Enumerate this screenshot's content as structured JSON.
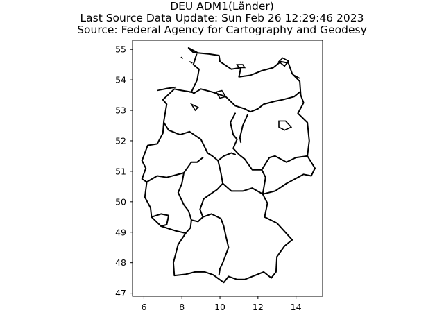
{
  "figure": {
    "title_lines": [
      "DEU ADM1(Länder)",
      "Last Source Data Update: Sun Feb 26 12:29:46 2023",
      "Source: Federal Agency for Cartography and Geodesy"
    ]
  },
  "map": {
    "xlim": [
      5.4,
      15.4
    ],
    "ylim": [
      46.9,
      55.3
    ],
    "x_ticks": [
      6,
      8,
      10,
      12,
      14
    ],
    "y_ticks": [
      47,
      48,
      49,
      50,
      51,
      52,
      53,
      54,
      55
    ],
    "boundary_color": "#000000",
    "outline": [
      [
        8.35,
        55.05
      ],
      [
        8.6,
        54.9
      ],
      [
        9.4,
        54.85
      ],
      [
        9.95,
        54.8
      ],
      [
        10.0,
        54.6
      ],
      [
        10.6,
        54.35
      ],
      [
        11.1,
        54.4
      ],
      [
        11.0,
        54.1
      ],
      [
        11.6,
        54.15
      ],
      [
        12.2,
        54.3
      ],
      [
        12.8,
        54.4
      ],
      [
        13.2,
        54.6
      ],
      [
        13.6,
        54.55
      ],
      [
        13.8,
        54.2
      ],
      [
        14.2,
        53.95
      ],
      [
        14.25,
        53.5
      ],
      [
        14.4,
        53.25
      ],
      [
        14.1,
        52.9
      ],
      [
        14.6,
        52.6
      ],
      [
        14.7,
        52.0
      ],
      [
        14.6,
        51.5
      ],
      [
        15.0,
        51.1
      ],
      [
        14.8,
        50.85
      ],
      [
        14.4,
        50.9
      ],
      [
        13.5,
        50.6
      ],
      [
        12.9,
        50.35
      ],
      [
        12.25,
        50.25
      ],
      [
        12.5,
        49.95
      ],
      [
        12.35,
        49.5
      ],
      [
        13.0,
        49.3
      ],
      [
        13.8,
        48.75
      ],
      [
        13.4,
        48.55
      ],
      [
        13.0,
        48.2
      ],
      [
        12.95,
        47.7
      ],
      [
        12.7,
        47.5
      ],
      [
        12.3,
        47.7
      ],
      [
        11.3,
        47.45
      ],
      [
        10.9,
        47.45
      ],
      [
        10.45,
        47.55
      ],
      [
        10.2,
        47.35
      ],
      [
        9.65,
        47.6
      ],
      [
        9.2,
        47.7
      ],
      [
        8.7,
        47.7
      ],
      [
        8.2,
        47.62
      ],
      [
        7.6,
        47.58
      ],
      [
        7.55,
        48.0
      ],
      [
        7.8,
        48.6
      ],
      [
        8.2,
        48.97
      ],
      [
        7.65,
        49.05
      ],
      [
        6.9,
        49.2
      ],
      [
        6.4,
        49.5
      ],
      [
        6.35,
        49.8
      ],
      [
        6.05,
        50.15
      ],
      [
        6.15,
        50.65
      ],
      [
        5.9,
        50.75
      ],
      [
        6.1,
        51.1
      ],
      [
        5.9,
        51.35
      ],
      [
        6.2,
        51.85
      ],
      [
        6.7,
        51.9
      ],
      [
        7.0,
        52.25
      ],
      [
        7.05,
        52.65
      ],
      [
        7.2,
        53.2
      ],
      [
        7.0,
        53.35
      ],
      [
        7.6,
        53.7
      ],
      [
        8.0,
        53.65
      ],
      [
        8.5,
        53.6
      ],
      [
        8.8,
        54.0
      ],
      [
        8.9,
        54.35
      ],
      [
        8.6,
        54.5
      ],
      [
        8.8,
        54.9
      ],
      [
        8.35,
        55.05
      ]
    ],
    "inner_borders": [
      [
        [
          8.6,
          53.55
        ],
        [
          9.0,
          53.7
        ],
        [
          9.6,
          53.6
        ],
        [
          10.3,
          53.45
        ],
        [
          10.8,
          53.15
        ],
        [
          11.3,
          53.05
        ],
        [
          11.6,
          52.95
        ],
        [
          12.0,
          53.05
        ],
        [
          12.3,
          53.2
        ],
        [
          12.9,
          53.3
        ],
        [
          13.3,
          53.35
        ],
        [
          13.9,
          53.45
        ],
        [
          14.2,
          53.6
        ]
      ],
      [
        [
          7.05,
          52.6
        ],
        [
          7.3,
          52.35
        ],
        [
          7.9,
          52.2
        ],
        [
          8.4,
          52.3
        ],
        [
          9.0,
          52.05
        ],
        [
          9.35,
          51.6
        ],
        [
          9.6,
          51.5
        ],
        [
          9.9,
          51.35
        ],
        [
          10.2,
          51.5
        ],
        [
          10.6,
          51.6
        ],
        [
          10.8,
          51.55
        ]
      ],
      [
        [
          10.8,
          52.9
        ],
        [
          10.55,
          52.6
        ],
        [
          10.7,
          52.2
        ],
        [
          10.9,
          52.05
        ],
        [
          10.7,
          51.75
        ],
        [
          11.0,
          51.55
        ],
        [
          11.3,
          51.4
        ],
        [
          11.7,
          51.05
        ],
        [
          12.2,
          51.05
        ],
        [
          12.6,
          51.45
        ],
        [
          12.9,
          51.5
        ],
        [
          13.5,
          51.3
        ],
        [
          14.0,
          51.45
        ],
        [
          14.6,
          51.5
        ]
      ],
      [
        [
          11.45,
          52.85
        ],
        [
          11.2,
          52.5
        ],
        [
          11.05,
          52.1
        ],
        [
          11.1,
          51.95
        ]
      ],
      [
        [
          6.15,
          50.65
        ],
        [
          6.7,
          50.85
        ],
        [
          7.2,
          50.8
        ],
        [
          8.1,
          50.95
        ],
        [
          8.5,
          51.3
        ],
        [
          8.8,
          51.3
        ],
        [
          9.1,
          51.45
        ]
      ],
      [
        [
          8.1,
          50.95
        ],
        [
          8.0,
          50.6
        ],
        [
          7.8,
          50.3
        ],
        [
          8.1,
          49.9
        ],
        [
          8.35,
          49.7
        ],
        [
          8.5,
          49.4
        ],
        [
          8.45,
          49.15
        ],
        [
          8.2,
          48.97
        ]
      ],
      [
        [
          6.4,
          49.5
        ],
        [
          6.9,
          49.6
        ],
        [
          7.3,
          49.55
        ],
        [
          7.2,
          49.25
        ],
        [
          6.9,
          49.2
        ]
      ],
      [
        [
          9.9,
          51.35
        ],
        [
          10.05,
          50.95
        ],
        [
          10.15,
          50.6
        ],
        [
          9.85,
          50.4
        ],
        [
          9.5,
          50.25
        ],
        [
          9.15,
          50.1
        ],
        [
          8.95,
          49.75
        ],
        [
          9.1,
          49.5
        ],
        [
          8.85,
          49.35
        ],
        [
          8.5,
          49.4
        ]
      ],
      [
        [
          10.15,
          50.6
        ],
        [
          10.6,
          50.35
        ],
        [
          11.2,
          50.35
        ],
        [
          11.7,
          50.45
        ],
        [
          12.25,
          50.25
        ]
      ],
      [
        [
          9.1,
          49.5
        ],
        [
          9.55,
          49.6
        ],
        [
          10.05,
          49.45
        ],
        [
          10.2,
          49.2
        ],
        [
          10.3,
          48.9
        ],
        [
          10.45,
          48.5
        ],
        [
          10.15,
          48.0
        ],
        [
          10.0,
          47.8
        ],
        [
          9.95,
          47.6
        ]
      ],
      [
        [
          12.2,
          51.05
        ],
        [
          12.4,
          50.8
        ],
        [
          12.25,
          50.25
        ]
      ]
    ],
    "islands": [
      {
        "type": "shape",
        "points": [
          [
            6.7,
            53.65
          ],
          [
            7.2,
            53.72
          ],
          [
            7.7,
            53.76
          ]
        ]
      },
      {
        "type": "shape",
        "points": [
          [
            7.95,
            54.75
          ],
          [
            8.05,
            54.7
          ]
        ]
      },
      {
        "type": "shape",
        "points": [
          [
            8.4,
            54.6
          ],
          [
            8.55,
            54.55
          ]
        ]
      },
      {
        "type": "shape",
        "points": [
          [
            10.9,
            54.5
          ],
          [
            11.2,
            54.5
          ],
          [
            11.3,
            54.4
          ],
          [
            11.0,
            54.4
          ],
          [
            10.9,
            54.5
          ]
        ]
      },
      {
        "type": "shape",
        "points": [
          [
            13.1,
            54.6
          ],
          [
            13.3,
            54.72
          ],
          [
            13.6,
            54.62
          ],
          [
            13.4,
            54.45
          ],
          [
            13.1,
            54.6
          ]
        ]
      },
      {
        "type": "shape",
        "points": [
          [
            13.9,
            54.15
          ],
          [
            14.2,
            54.05
          ]
        ]
      },
      {
        "type": "shape",
        "points": [
          [
            9.8,
            53.6
          ],
          [
            10.1,
            53.65
          ],
          [
            10.3,
            53.45
          ],
          [
            10.0,
            53.4
          ],
          [
            9.8,
            53.6
          ]
        ]
      },
      {
        "type": "shape",
        "points": [
          [
            8.5,
            53.2
          ],
          [
            8.85,
            53.1
          ],
          [
            8.7,
            53.0
          ],
          [
            8.5,
            53.2
          ]
        ]
      },
      {
        "type": "shape",
        "points": [
          [
            8.4,
            53.6
          ],
          [
            8.6,
            53.58
          ]
        ]
      },
      {
        "type": "shape",
        "points": [
          [
            13.1,
            52.65
          ],
          [
            13.45,
            52.65
          ],
          [
            13.75,
            52.45
          ],
          [
            13.4,
            52.35
          ],
          [
            13.1,
            52.45
          ],
          [
            13.1,
            52.65
          ]
        ]
      }
    ]
  }
}
